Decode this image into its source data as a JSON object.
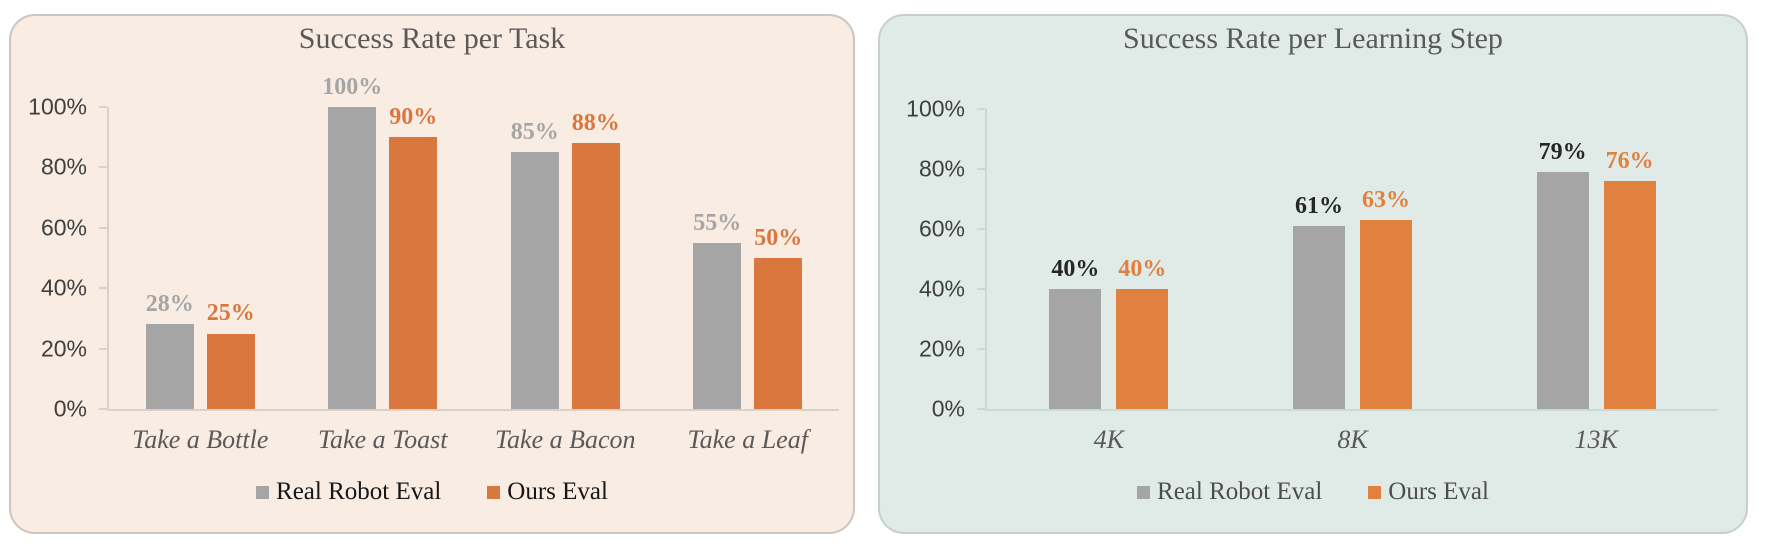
{
  "chart_data": [
    {
      "type": "bar",
      "title": "Success Rate per Task",
      "categories": [
        "Take a Bottle",
        "Take a Toast",
        "Take a Bacon",
        "Take a Leaf"
      ],
      "series": [
        {
          "name": "Real Robot Eval",
          "color": "#A5A5A5",
          "label_color": "#A5A5A5",
          "values": [
            28,
            100,
            85,
            55
          ]
        },
        {
          "name": "Ours Eval",
          "color": "#D9773E",
          "label_color": "#D9773E",
          "values": [
            25,
            90,
            88,
            50
          ]
        }
      ],
      "y_ticks": [
        "0%",
        "20%",
        "40%",
        "60%",
        "80%",
        "100%"
      ],
      "ylim": [
        0,
        100
      ],
      "label_suffix": "%",
      "grid": false,
      "legend_position": "bottom",
      "style": {
        "background": "#F9ECE3",
        "border_color": "#CCC4BE",
        "axis_color": "#DBD0C9",
        "title_color": "#595959",
        "tick_label_color": "#3F3F3F",
        "category_label_color": "#595959",
        "legend_text_color": "#161616"
      }
    },
    {
      "type": "bar",
      "title": "Success Rate per Learning Step",
      "categories": [
        "4K",
        "8K",
        "13K"
      ],
      "series": [
        {
          "name": "Real Robot Eval",
          "color": "#A5A5A5",
          "label_color": "#262626",
          "values": [
            40,
            61,
            79
          ]
        },
        {
          "name": "Ours Eval",
          "color": "#E0813F",
          "label_color": "#E0813F",
          "values": [
            40,
            63,
            76
          ]
        }
      ],
      "y_ticks": [
        "0%",
        "20%",
        "40%",
        "60%",
        "80%",
        "100%"
      ],
      "ylim": [
        0,
        100
      ],
      "label_suffix": "%",
      "grid": false,
      "legend_position": "bottom",
      "style": {
        "background": "#E0EBE8",
        "border_color": "#C5CFCC",
        "axis_color": "#CBD9D5",
        "title_color": "#595959",
        "tick_label_color": "#3F3F3F",
        "category_label_color": "#595959",
        "legend_text_color": "#4D4D4D"
      }
    }
  ]
}
